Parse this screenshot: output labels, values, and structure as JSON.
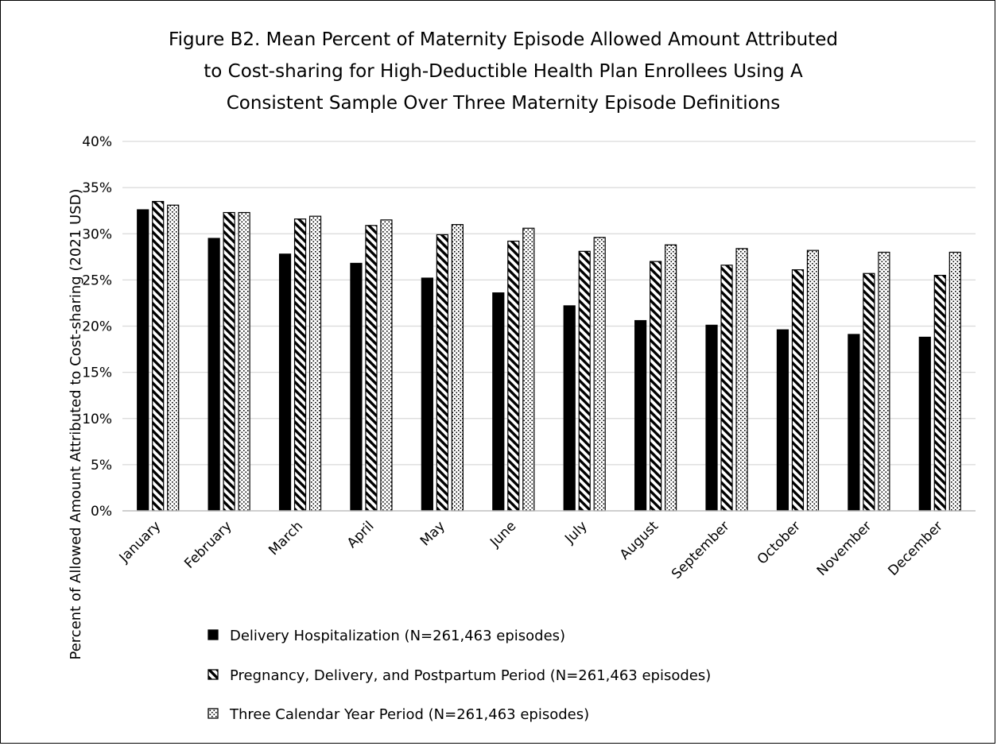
{
  "chart_data": {
    "type": "bar",
    "title_lines": [
      "Figure B2. Mean Percent of Maternity Episode Allowed Amount Attributed",
      "to Cost-sharing for High-Deductible Health Plan Enrollees Using A",
      "Consistent Sample Over Three Maternity Episode Definitions"
    ],
    "ylabel": "Percent of Allowed Amount Attributed to Cost-sharing (2021 USD)",
    "xlabel": "",
    "ylim": [
      0,
      40
    ],
    "y_ticks": [
      "0%",
      "5%",
      "10%",
      "15%",
      "20%",
      "25%",
      "30%",
      "35%",
      "40%"
    ],
    "grid": true,
    "legend_position": "bottom",
    "categories": [
      "January",
      "February",
      "March",
      "April",
      "May",
      "June",
      "July",
      "August",
      "September",
      "October",
      "November",
      "December"
    ],
    "series": [
      {
        "name": "Delivery Hospitalization (N=261,463 episodes)",
        "pattern": "solid-black",
        "values": [
          32.6,
          29.5,
          27.8,
          26.8,
          25.2,
          23.6,
          22.2,
          20.6,
          20.1,
          19.6,
          19.1,
          18.8
        ]
      },
      {
        "name": "Pregnancy, Delivery, and Postpartum Period (N=261,463 episodes)",
        "pattern": "diagonal-stripes",
        "values": [
          33.5,
          32.3,
          31.6,
          30.9,
          29.9,
          29.2,
          28.1,
          27.0,
          26.6,
          26.1,
          25.7,
          25.5
        ]
      },
      {
        "name": "Three Calendar Year Period (N=261,463 episodes)",
        "pattern": "dots",
        "values": [
          33.1,
          32.3,
          31.9,
          31.5,
          31.0,
          30.6,
          29.6,
          28.8,
          28.4,
          28.2,
          28.0,
          28.0
        ]
      }
    ],
    "colors": {
      "grid": "#d9d9d9",
      "bar_outline": "#000000",
      "fill_dark": "#000000",
      "fill_light": "#ffffff"
    }
  }
}
